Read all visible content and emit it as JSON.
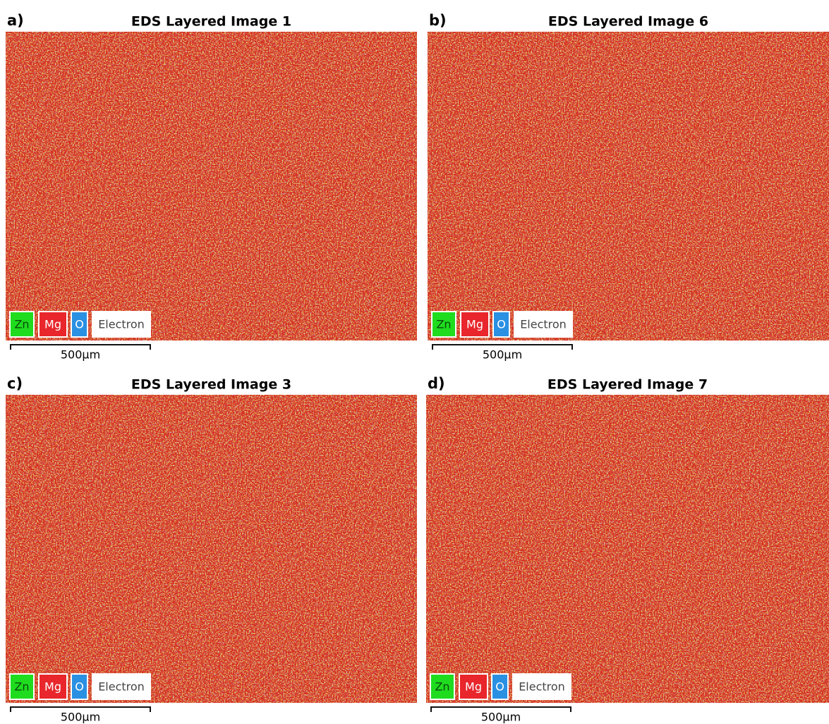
{
  "panels": [
    {
      "label": "a)",
      "title": "EDS Layered Image 1",
      "legend": [
        "Zn",
        "Mg",
        "O",
        "Electron"
      ],
      "scale_bar": "500µm"
    },
    {
      "label": "b)",
      "title": "EDS Layered Image 6",
      "legend": [
        "Zn",
        "Mg",
        "O",
        "Electron"
      ],
      "scale_bar": "500µm"
    },
    {
      "label": "c)",
      "title": "EDS Layered Image 3",
      "legend": [
        "Zn",
        "Mg",
        "O",
        "Electron"
      ],
      "scale_bar": "500µm"
    },
    {
      "label": "d)",
      "title": "EDS Layered Image 7",
      "legend": [
        "Zn",
        "Mg",
        "O",
        "Electron"
      ],
      "scale_bar": "500µm"
    }
  ]
}
